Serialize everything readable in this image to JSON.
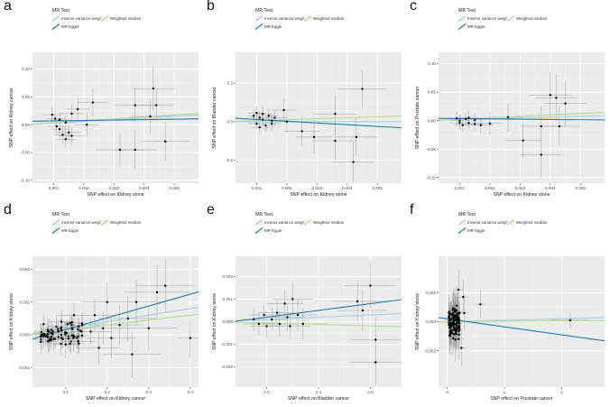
{
  "colors": {
    "panel_bg": "#ebebeb",
    "grid_major": "#ffffff",
    "grid_minor": "#f5f5f5",
    "ivw": "#a6cee3",
    "egger": "#1f78b4",
    "median": "#b2df8a",
    "point": "#000000",
    "errorbar": "#9a9a9a"
  },
  "chart_data": [
    {
      "panel": "a",
      "type": "scatter",
      "xlabel": "SNP effect on  Kidney stone",
      "ylabel": "SNP effect on Kidney cancer",
      "xlim": [
        0.0003,
        0.0058
      ],
      "ylim": [
        -0.105,
        0.13
      ],
      "xticks": [
        0.001,
        0.002,
        0.003,
        0.004,
        0.005
      ],
      "yticks": [
        -0.1,
        -0.05,
        0.0,
        0.05,
        0.1
      ],
      "xtick_labels": [
        "0.001",
        "0.002",
        "0.003",
        "0.004",
        "0.005"
      ],
      "ytick_labels": [
        "-0.10",
        "-0.05",
        "0.00",
        "0.05",
        "0.10"
      ],
      "legend": {
        "title": "MR Test",
        "entries": [
          "Inverse variance weighted",
          "Weighted median",
          "MR Egger"
        ]
      },
      "lines": {
        "ivw": [
          0.0,
          3.0
        ],
        "median": [
          0.0,
          3.5
        ],
        "egger": [
          0.006,
          0.8
        ]
      },
      "points": [
        {
          "x": 0.00095,
          "y": 0.018,
          "ex": 0.0003,
          "ey": 0.014
        },
        {
          "x": 0.00105,
          "y": 0.011,
          "ex": 0.0003,
          "ey": 0.015
        },
        {
          "x": 0.0011,
          "y": -0.003,
          "ex": 0.0003,
          "ey": 0.013
        },
        {
          "x": 0.0012,
          "y": 0.009,
          "ex": 0.0003,
          "ey": 0.014
        },
        {
          "x": 0.0012,
          "y": -0.008,
          "ex": 0.0003,
          "ey": 0.015
        },
        {
          "x": 0.0013,
          "y": -0.018,
          "ex": 0.0003,
          "ey": 0.016
        },
        {
          "x": 0.0014,
          "y": 0.004,
          "ex": 0.0003,
          "ey": 0.014
        },
        {
          "x": 0.0014,
          "y": -0.026,
          "ex": 0.0003,
          "ey": 0.015
        },
        {
          "x": 0.0015,
          "y": -0.014,
          "ex": 0.0004,
          "ey": 0.016
        },
        {
          "x": 0.0016,
          "y": 0.02,
          "ex": 0.0004,
          "ey": 0.017
        },
        {
          "x": 0.0016,
          "y": -0.02,
          "ex": 0.0004,
          "ey": 0.016
        },
        {
          "x": 0.0018,
          "y": 0.028,
          "ex": 0.0004,
          "ey": 0.02
        },
        {
          "x": 0.0021,
          "y": 0.0,
          "ex": 0.0004,
          "ey": 0.022
        },
        {
          "x": 0.0023,
          "y": 0.04,
          "ex": 0.0005,
          "ey": 0.025
        },
        {
          "x": 0.0032,
          "y": -0.045,
          "ex": 0.0008,
          "ey": 0.03
        },
        {
          "x": 0.0037,
          "y": 0.035,
          "ex": 0.0007,
          "ey": 0.03
        },
        {
          "x": 0.0037,
          "y": -0.045,
          "ex": 0.0007,
          "ey": 0.035
        },
        {
          "x": 0.0042,
          "y": 0.015,
          "ex": 0.0007,
          "ey": 0.03
        },
        {
          "x": 0.0043,
          "y": 0.065,
          "ex": 0.0007,
          "ey": 0.04
        },
        {
          "x": 0.0044,
          "y": 0.035,
          "ex": 0.0006,
          "ey": 0.03
        },
        {
          "x": 0.0047,
          "y": -0.03,
          "ex": 0.0008,
          "ey": 0.035
        }
      ]
    },
    {
      "panel": "b",
      "type": "scatter",
      "xlabel": "SNP effect on  Kidney stone",
      "ylabel": "SNP effect on Bladder cancer",
      "xlim": [
        0.0003,
        0.0058
      ],
      "ylim": [
        -0.32,
        0.36
      ],
      "xticks": [
        0.001,
        0.002,
        0.003,
        0.004,
        0.005
      ],
      "yticks": [
        -0.2,
        0.0,
        0.2
      ],
      "xtick_labels": [
        "0.001",
        "0.002",
        "0.003",
        "0.004",
        "0.005"
      ],
      "ytick_labels": [
        "-0.2",
        "0.0",
        "0.2"
      ],
      "legend": {
        "title": "MR Test",
        "entries": [
          "Inverse variance weighted",
          "Weighted median",
          "MR Egger"
        ]
      },
      "lines": {
        "ivw": [
          0.0,
          0.0
        ],
        "median": [
          0.0,
          5.0
        ],
        "egger": [
          0.02,
          -9.0
        ]
      },
      "points": [
        {
          "x": 0.0009,
          "y": 0.03,
          "ex": 0.0002,
          "ey": 0.035
        },
        {
          "x": 0.001,
          "y": 0.045,
          "ex": 0.0003,
          "ey": 0.035
        },
        {
          "x": 0.001,
          "y": -0.01,
          "ex": 0.0003,
          "ey": 0.03
        },
        {
          "x": 0.0011,
          "y": 0.02,
          "ex": 0.0003,
          "ey": 0.035
        },
        {
          "x": 0.0011,
          "y": -0.03,
          "ex": 0.0003,
          "ey": 0.03
        },
        {
          "x": 0.0012,
          "y": 0.04,
          "ex": 0.0003,
          "ey": 0.04
        },
        {
          "x": 0.0012,
          "y": 0.01,
          "ex": 0.0003,
          "ey": 0.035
        },
        {
          "x": 0.0013,
          "y": -0.02,
          "ex": 0.0003,
          "ey": 0.035
        },
        {
          "x": 0.0014,
          "y": 0.03,
          "ex": 0.0003,
          "ey": 0.04
        },
        {
          "x": 0.0015,
          "y": 0.005,
          "ex": 0.0003,
          "ey": 0.035
        },
        {
          "x": 0.0015,
          "y": -0.01,
          "ex": 0.0003,
          "ey": 0.04
        },
        {
          "x": 0.0016,
          "y": 0.02,
          "ex": 0.0004,
          "ey": 0.04
        },
        {
          "x": 0.0019,
          "y": 0.06,
          "ex": 0.0004,
          "ey": 0.06
        },
        {
          "x": 0.002,
          "y": 0.0,
          "ex": 0.0004,
          "ey": 0.06
        },
        {
          "x": 0.0025,
          "y": -0.05,
          "ex": 0.0006,
          "ey": 0.08
        },
        {
          "x": 0.0029,
          "y": -0.08,
          "ex": 0.0006,
          "ey": 0.09
        },
        {
          "x": 0.0036,
          "y": 0.04,
          "ex": 0.0007,
          "ey": 0.1
        },
        {
          "x": 0.0036,
          "y": -0.1,
          "ex": 0.0007,
          "ey": 0.1
        },
        {
          "x": 0.0042,
          "y": -0.21,
          "ex": 0.0007,
          "ey": 0.1
        },
        {
          "x": 0.0043,
          "y": -0.08,
          "ex": 0.0007,
          "ey": 0.1
        },
        {
          "x": 0.0045,
          "y": 0.17,
          "ex": 0.0008,
          "ey": 0.1
        }
      ]
    },
    {
      "panel": "c",
      "type": "scatter",
      "xlabel": "SNP effect on  Kidney stone",
      "ylabel": "SNP effect on Prostate cancer",
      "xlim": [
        0.0003,
        0.0058
      ],
      "ylim": [
        -0.11,
        0.12
      ],
      "xticks": [
        0.001,
        0.002,
        0.003,
        0.004,
        0.005
      ],
      "yticks": [
        -0.1,
        -0.05,
        0.0,
        0.05,
        0.1
      ],
      "xtick_labels": [
        "0.001",
        "0.002",
        "0.003",
        "0.004",
        "0.005"
      ],
      "ytick_labels": [
        "-0.10",
        "-0.05",
        "0.00",
        "0.05",
        "0.10"
      ],
      "legend": {
        "title": "MR Test",
        "entries": [
          "Inverse variance weighted",
          "Weighted median",
          "MR Egger"
        ]
      },
      "lines": {
        "ivw": [
          0.0,
          1.5
        ],
        "median": [
          0.0,
          2.5
        ],
        "egger": [
          0.004,
          -0.5
        ]
      },
      "points": [
        {
          "x": 0.0009,
          "y": 0.004,
          "ex": 0.0003,
          "ey": 0.012
        },
        {
          "x": 0.001,
          "y": -0.004,
          "ex": 0.0003,
          "ey": 0.012
        },
        {
          "x": 0.001,
          "y": 0.0,
          "ex": 0.0003,
          "ey": 0.011
        },
        {
          "x": 0.0011,
          "y": -0.008,
          "ex": 0.0003,
          "ey": 0.012
        },
        {
          "x": 0.0012,
          "y": 0.003,
          "ex": 0.0003,
          "ey": 0.012
        },
        {
          "x": 0.0013,
          "y": -0.004,
          "ex": 0.0003,
          "ey": 0.012
        },
        {
          "x": 0.0013,
          "y": 0.005,
          "ex": 0.0003,
          "ey": 0.012
        },
        {
          "x": 0.0015,
          "y": -0.006,
          "ex": 0.0003,
          "ey": 0.013
        },
        {
          "x": 0.0015,
          "y": 0.001,
          "ex": 0.0003,
          "ey": 0.012
        },
        {
          "x": 0.0017,
          "y": -0.008,
          "ex": 0.0004,
          "ey": 0.014
        },
        {
          "x": 0.002,
          "y": -0.005,
          "ex": 0.0004,
          "ey": 0.02
        },
        {
          "x": 0.0026,
          "y": 0.006,
          "ex": 0.0005,
          "ey": 0.025
        },
        {
          "x": 0.0031,
          "y": -0.035,
          "ex": 0.0006,
          "ey": 0.03
        },
        {
          "x": 0.0037,
          "y": -0.01,
          "ex": 0.0007,
          "ey": 0.035
        },
        {
          "x": 0.0037,
          "y": -0.06,
          "ex": 0.0007,
          "ey": 0.04
        },
        {
          "x": 0.004,
          "y": 0.045,
          "ex": 0.0007,
          "ey": 0.04
        },
        {
          "x": 0.0042,
          "y": 0.04,
          "ex": 0.0007,
          "ey": 0.04
        },
        {
          "x": 0.0043,
          "y": -0.01,
          "ex": 0.0007,
          "ey": 0.035
        },
        {
          "x": 0.0045,
          "y": 0.03,
          "ex": 0.0007,
          "ey": 0.04
        }
      ]
    },
    {
      "panel": "d",
      "type": "scatter",
      "xlabel": "SNP effect on Kidney cancer",
      "ylabel": "SNP effect on Kidney stone",
      "xlim": [
        0.02,
        0.42
      ],
      "ylim": [
        -0.0016,
        0.0024
      ],
      "xticks": [
        0.1,
        0.2,
        0.3,
        0.4
      ],
      "yticks": [
        -0.001,
        0.0,
        0.001,
        0.002
      ],
      "xtick_labels": [
        "0.1",
        "0.2",
        "0.3",
        "0.4"
      ],
      "ytick_labels": [
        "-0.001",
        "0.000",
        "0.001",
        "0.002"
      ],
      "legend": {
        "title": "MR Test",
        "entries": [
          "Inverse variance weighted",
          "Weighted median",
          "MR Egger"
        ]
      },
      "lines": {
        "ivw": [
          0.0,
          0.002
        ],
        "median": [
          0.0,
          0.0015
        ],
        "egger": [
          -0.0002,
          0.0036
        ]
      },
      "cluster": {
        "n": 70,
        "xmin": 0.04,
        "xmax": 0.14,
        "ymin": -0.00045,
        "ymax": 0.00045
      },
      "points": [
        {
          "x": 0.09,
          "y": 0.0004,
          "ex": 0.03,
          "ey": 0.00035
        },
        {
          "x": 0.1,
          "y": -0.0003,
          "ex": 0.03,
          "ey": 0.0004
        },
        {
          "x": 0.12,
          "y": 0.0006,
          "ex": 0.04,
          "ey": 0.0004
        },
        {
          "x": 0.13,
          "y": -0.0002,
          "ex": 0.04,
          "ey": 0.0004
        },
        {
          "x": 0.14,
          "y": 0.0003,
          "ex": 0.04,
          "ey": 0.0004
        },
        {
          "x": 0.16,
          "y": 0.0001,
          "ex": 0.05,
          "ey": 0.0004
        },
        {
          "x": 0.17,
          "y": 0.0006,
          "ex": 0.05,
          "ey": 0.0005
        },
        {
          "x": 0.18,
          "y": -0.0004,
          "ex": 0.05,
          "ey": 0.0005
        },
        {
          "x": 0.19,
          "y": 0.0002,
          "ex": 0.05,
          "ey": 0.0005
        },
        {
          "x": 0.2,
          "y": 0.001,
          "ex": 0.06,
          "ey": 0.0006
        },
        {
          "x": 0.21,
          "y": -0.0001,
          "ex": 0.06,
          "ey": 0.0006
        },
        {
          "x": 0.23,
          "y": 0.0003,
          "ex": 0.06,
          "ey": 0.0006
        },
        {
          "x": 0.25,
          "y": 0.0005,
          "ex": 0.07,
          "ey": 0.0007
        },
        {
          "x": 0.26,
          "y": -0.0006,
          "ex": 0.07,
          "ey": 0.0007
        },
        {
          "x": 0.27,
          "y": 0.001,
          "ex": 0.07,
          "ey": 0.0007
        },
        {
          "x": 0.3,
          "y": 0.0002,
          "ex": 0.07,
          "ey": 0.0007
        },
        {
          "x": 0.32,
          "y": 0.0013,
          "ex": 0.08,
          "ey": 0.0008
        },
        {
          "x": 0.34,
          "y": 0.0015,
          "ex": 0.07,
          "ey": 0.0008
        },
        {
          "x": 0.4,
          "y": -0.0001,
          "ex": 0.03,
          "ey": 0.0006
        }
      ]
    },
    {
      "panel": "e",
      "type": "scatter",
      "xlabel": "SNP effect on Bladder cancer",
      "ylabel": "SNP effect on Kidney stone",
      "xlim": [
        0.08,
        0.72
      ],
      "ylim": [
        -0.0029,
        0.0029
      ],
      "xticks": [
        0.2,
        0.4,
        0.6
      ],
      "yticks": [
        -0.002,
        -0.001,
        0.0,
        0.001,
        0.002
      ],
      "xtick_labels": [
        "0.2",
        "0.4",
        "0.6"
      ],
      "ytick_labels": [
        "-0.002",
        "-0.001",
        "0.000",
        "0.001",
        "0.002"
      ],
      "legend": {
        "title": "MR Test",
        "entries": [
          "Inverse variance weighted",
          "Weighted median",
          "MR Egger"
        ]
      },
      "lines": {
        "ivw": [
          0.0,
          0.0005
        ],
        "median": [
          0.0,
          -0.0003
        ],
        "egger": [
          -0.0001,
          0.0015
        ]
      },
      "points": [
        {
          "x": 0.15,
          "y": 0.0001,
          "ex": 0.05,
          "ey": 0.0005
        },
        {
          "x": 0.17,
          "y": -0.0001,
          "ex": 0.06,
          "ey": 0.0005
        },
        {
          "x": 0.19,
          "y": 0.0003,
          "ex": 0.06,
          "ey": 0.0005
        },
        {
          "x": 0.2,
          "y": -0.0002,
          "ex": 0.06,
          "ey": 0.0005
        },
        {
          "x": 0.22,
          "y": 0.0001,
          "ex": 0.06,
          "ey": 0.0005
        },
        {
          "x": 0.24,
          "y": 0.0004,
          "ex": 0.07,
          "ey": 0.0006
        },
        {
          "x": 0.25,
          "y": -0.0001,
          "ex": 0.07,
          "ey": 0.0006
        },
        {
          "x": 0.27,
          "y": 0.0008,
          "ex": 0.07,
          "ey": 0.0006
        },
        {
          "x": 0.28,
          "y": 0.0002,
          "ex": 0.07,
          "ey": 0.0006
        },
        {
          "x": 0.29,
          "y": -0.0002,
          "ex": 0.08,
          "ey": 0.0006
        },
        {
          "x": 0.3,
          "y": 0.001,
          "ex": 0.08,
          "ey": 0.0007
        },
        {
          "x": 0.32,
          "y": 0.0003,
          "ex": 0.08,
          "ey": 0.0007
        },
        {
          "x": 0.34,
          "y": -0.0001,
          "ex": 0.09,
          "ey": 0.0007
        },
        {
          "x": 0.55,
          "y": 0.0009,
          "ex": 0.1,
          "ey": 0.0009
        },
        {
          "x": 0.57,
          "y": 0.0005,
          "ex": 0.1,
          "ey": 0.0009
        },
        {
          "x": 0.6,
          "y": 0.0016,
          "ex": 0.1,
          "ey": 0.001
        },
        {
          "x": 0.62,
          "y": -0.0008,
          "ex": 0.1,
          "ey": 0.001
        },
        {
          "x": 0.62,
          "y": -0.0018,
          "ex": 0.1,
          "ey": 0.001
        }
      ]
    },
    {
      "panel": "f",
      "type": "scatter",
      "xlabel": "SNP effect on  Prostate cancer",
      "ylabel": "SNP effect on Kidney stone",
      "xlim": [
        -0.15,
        2.75
      ],
      "ylim": [
        -0.0045,
        0.0045
      ],
      "xticks": [
        0,
        1,
        2
      ],
      "yticks": [
        -0.002,
        0.0,
        0.002
      ],
      "xtick_labels": [
        "0",
        "1",
        "2"
      ],
      "ytick_labels": [
        "-0.002",
        "0.000",
        "0.002"
      ],
      "legend": {
        "title": "MR Test",
        "entries": [
          "Inverse variance weighted",
          "Weighted median",
          "MR Egger"
        ]
      },
      "lines": {
        "ivw": [
          0.0,
          0.0001
        ],
        "median": [
          0.0,
          3e-05
        ],
        "egger": [
          0.0002,
          -0.00055
        ]
      },
      "cluster": {
        "n": 110,
        "xmin": 0.03,
        "xmax": 0.22,
        "ymin": -0.0016,
        "ymax": 0.0016
      },
      "points": [
        {
          "x": 0.28,
          "y": 0.0017,
          "ex": 0.1,
          "ey": 0.0012
        },
        {
          "x": 0.25,
          "y": -0.0018,
          "ex": 0.08,
          "ey": 0.0012
        },
        {
          "x": 0.2,
          "y": 0.0022,
          "ex": 0.08,
          "ey": 0.0014
        },
        {
          "x": 0.2,
          "y": -0.0012,
          "ex": 0.08,
          "ey": 0.0014
        },
        {
          "x": 0.3,
          "y": 0.0006,
          "ex": 0.08,
          "ey": 0.0012
        },
        {
          "x": 0.58,
          "y": 0.0012,
          "ex": 0.08,
          "ey": 0.001
        },
        {
          "x": 2.15,
          "y": 0.0001,
          "ex": 0.35,
          "ey": 0.0006
        }
      ]
    }
  ]
}
